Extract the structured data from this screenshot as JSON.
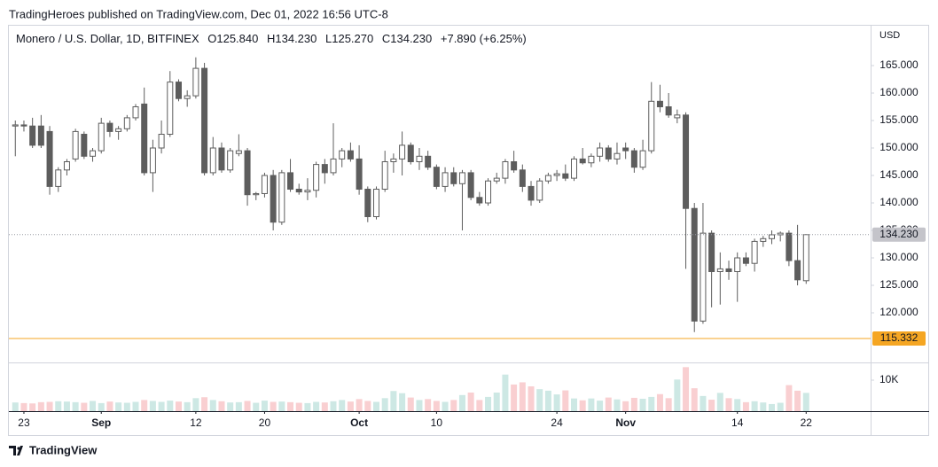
{
  "page": {
    "published": "TradingHeroes published on TradingView.com, Dec 01, 2022 16:56 UTC-8",
    "footer": "TradingView"
  },
  "chart_data": {
    "type": "candlestick",
    "title": "Monero / U.S. Dollar, 1D, BITFINEX",
    "ohlc_header": [
      "O125.840",
      "H134.230",
      "L125.270",
      "C134.230",
      "+7.890 (+6.25%)"
    ],
    "currency": "USD",
    "up_color": "#ffffff",
    "down_color": "#5d5d5d",
    "outline_color": "#5d5d5d",
    "open": [
      154,
      154.2,
      154,
      154,
      153,
      143,
      146,
      148,
      152.5,
      148.5,
      149.5,
      154.5,
      153,
      153.5,
      155.5,
      158,
      145.5,
      150,
      152.5,
      162,
      159,
      159.5,
      164.5,
      145.5,
      150,
      146,
      149,
      149.5,
      141.5,
      141.7,
      145,
      136.5,
      145.5,
      142.5,
      142,
      142.3,
      147,
      145.5,
      148,
      149.5,
      148,
      142.5,
      137.5,
      142.5,
      147.5,
      148,
      150.5,
      147.5,
      148.5,
      146.5,
      143,
      145.5,
      143.5,
      145.5,
      141,
      140,
      144,
      144.5,
      147.5,
      146,
      143,
      140.5,
      144,
      145,
      145.3,
      144.5,
      148,
      147.3,
      148.5,
      150,
      148,
      150,
      149.5,
      146.5,
      149.5,
      158.5,
      157.5,
      155.5,
      156,
      139,
      118.5,
      134.5,
      127.5,
      128,
      127.5,
      130,
      129,
      133,
      133.5,
      134.2,
      134.5,
      129.5,
      125.84
    ],
    "high": [
      155,
      155,
      155.5,
      156,
      154,
      146.5,
      148,
      153.5,
      153,
      150,
      155.5,
      155,
      154,
      156,
      158,
      161,
      151.5,
      155,
      164,
      162.5,
      160.5,
      166.5,
      165.5,
      152,
      151,
      150,
      152.5,
      150,
      142,
      145.5,
      146,
      146,
      148,
      143.5,
      144.5,
      147.5,
      148,
      154.5,
      150,
      151,
      150.5,
      143,
      143,
      149.5,
      149,
      153,
      151,
      150,
      149.5,
      147,
      146.5,
      146.5,
      146,
      146,
      142,
      144.5,
      145.5,
      148,
      149.5,
      147,
      144,
      144.5,
      145.5,
      146,
      147,
      148.5,
      150,
      149,
      151,
      150.5,
      151,
      151,
      150,
      151.5,
      162,
      161.5,
      160,
      157,
      156.5,
      140,
      140,
      135,
      131,
      129.5,
      131,
      131,
      133.5,
      134,
      135,
      134.8,
      135,
      136,
      134.23
    ],
    "low": [
      148.5,
      153,
      150,
      150,
      141.5,
      142,
      145,
      147.5,
      148,
      147.5,
      149,
      152,
      151.5,
      153,
      155,
      145,
      142,
      149,
      152,
      158.5,
      157.5,
      159,
      145,
      145,
      145.5,
      145.5,
      148.5,
      139.5,
      140.5,
      141,
      135,
      136,
      142,
      141.5,
      140.5,
      141,
      143.5,
      145,
      146.5,
      147.5,
      141.5,
      136.5,
      137,
      142,
      145.5,
      145,
      147,
      146,
      146,
      142.5,
      142,
      143,
      135,
      140.5,
      139.5,
      139.5,
      143.5,
      143.5,
      145.5,
      142,
      139.5,
      140,
      143.5,
      144,
      144,
      144,
      147,
      146.5,
      147.5,
      147.5,
      147,
      148,
      145.5,
      146,
      149,
      156.5,
      155.5,
      154.5,
      128,
      116.5,
      118,
      121,
      121.5,
      126,
      122,
      128.5,
      127.5,
      132,
      132.5,
      133,
      128.5,
      125,
      125.27
    ],
    "close": [
      154.2,
      154,
      150.5,
      150.5,
      143,
      146,
      147.5,
      153,
      148.5,
      149.5,
      154.5,
      153,
      153.5,
      155.5,
      157.5,
      145.5,
      150,
      152.5,
      162,
      159,
      159.5,
      164.5,
      145.5,
      150,
      146,
      149.5,
      149.5,
      141.5,
      141.7,
      145,
      136.5,
      145.5,
      142.5,
      142,
      142.3,
      147,
      145.5,
      148,
      149.5,
      148,
      142.5,
      137.5,
      142.5,
      147.5,
      148,
      150.5,
      147.5,
      148.5,
      146.5,
      143,
      145.5,
      143.5,
      145.5,
      141,
      140,
      144,
      144.5,
      147.5,
      146,
      143,
      140.5,
      144,
      145,
      145.3,
      144.5,
      148,
      147.3,
      148.5,
      150,
      148,
      149,
      149.5,
      146.5,
      149.5,
      158.5,
      157.5,
      156,
      156,
      139,
      118.5,
      134.5,
      127.5,
      128,
      127.5,
      130,
      129,
      133,
      133.5,
      134.2,
      134.5,
      129.5,
      126,
      134.23
    ],
    "volume": [
      2800,
      2600,
      2500,
      2900,
      3000,
      3200,
      3100,
      2900,
      2700,
      3300,
      2600,
      3100,
      2800,
      2700,
      3000,
      3600,
      3300,
      3000,
      3400,
      3100,
      2900,
      4200,
      4500,
      3600,
      3200,
      2800,
      2900,
      3300,
      2700,
      3400,
      3000,
      3100,
      2900,
      2700,
      2600,
      3000,
      2800,
      3200,
      3600,
      3100,
      3900,
      3300,
      3000,
      4200,
      6500,
      5800,
      4400,
      3600,
      3900,
      3300,
      3000,
      3600,
      5200,
      6000,
      3600,
      4600,
      6000,
      11800,
      8600,
      9300,
      8000,
      7100,
      6600,
      5400,
      6700,
      4100,
      3500,
      4100,
      3400,
      4400,
      3800,
      3200,
      4300,
      4000,
      4600,
      5500,
      4200,
      10200,
      14200,
      7400,
      4900,
      3700,
      5900,
      4200,
      3900,
      2900,
      3200,
      2800,
      2300,
      2700,
      8400,
      6600,
      5900
    ],
    "volume_colors": {
      "up": "#cde8e4",
      "down": "#f9cfd1"
    },
    "xlim": [
      -0.75,
      99.5
    ],
    "xticks": [
      {
        "value": 1,
        "label": "23"
      },
      {
        "value": 10,
        "label": "Sep"
      },
      {
        "value": 21,
        "label": "12"
      },
      {
        "value": 29,
        "label": "20"
      },
      {
        "value": 40,
        "label": "Oct"
      },
      {
        "value": 49,
        "label": "10"
      },
      {
        "value": 63,
        "label": "24"
      },
      {
        "value": 71,
        "label": "Nov"
      },
      {
        "value": 84,
        "label": "14"
      },
      {
        "value": 92,
        "label": "22"
      }
    ],
    "ylim": [
      110.97,
      172.42
    ],
    "yticks": [
      {
        "value": 120,
        "label": "120.000"
      },
      {
        "value": 125,
        "label": "125.000"
      },
      {
        "value": 130,
        "label": "130.000"
      },
      {
        "value": 135,
        "label": "135.000"
      },
      {
        "value": 140,
        "label": "140.000"
      },
      {
        "value": 145,
        "label": "145.000"
      },
      {
        "value": 150,
        "label": "150.000"
      },
      {
        "value": 155,
        "label": "155.000"
      },
      {
        "value": 160,
        "label": "160.000"
      },
      {
        "value": 165,
        "label": "165.000"
      }
    ],
    "volume_ylim": [
      0,
      15000
    ],
    "volume_yticks": [
      {
        "value": 10000,
        "label": "10K"
      }
    ],
    "last_price": {
      "value": 134.23,
      "label": "134.230",
      "color": "#c4c4ca"
    },
    "level": {
      "value": 115.332,
      "label": "115.332",
      "color": "#f5a623"
    }
  }
}
